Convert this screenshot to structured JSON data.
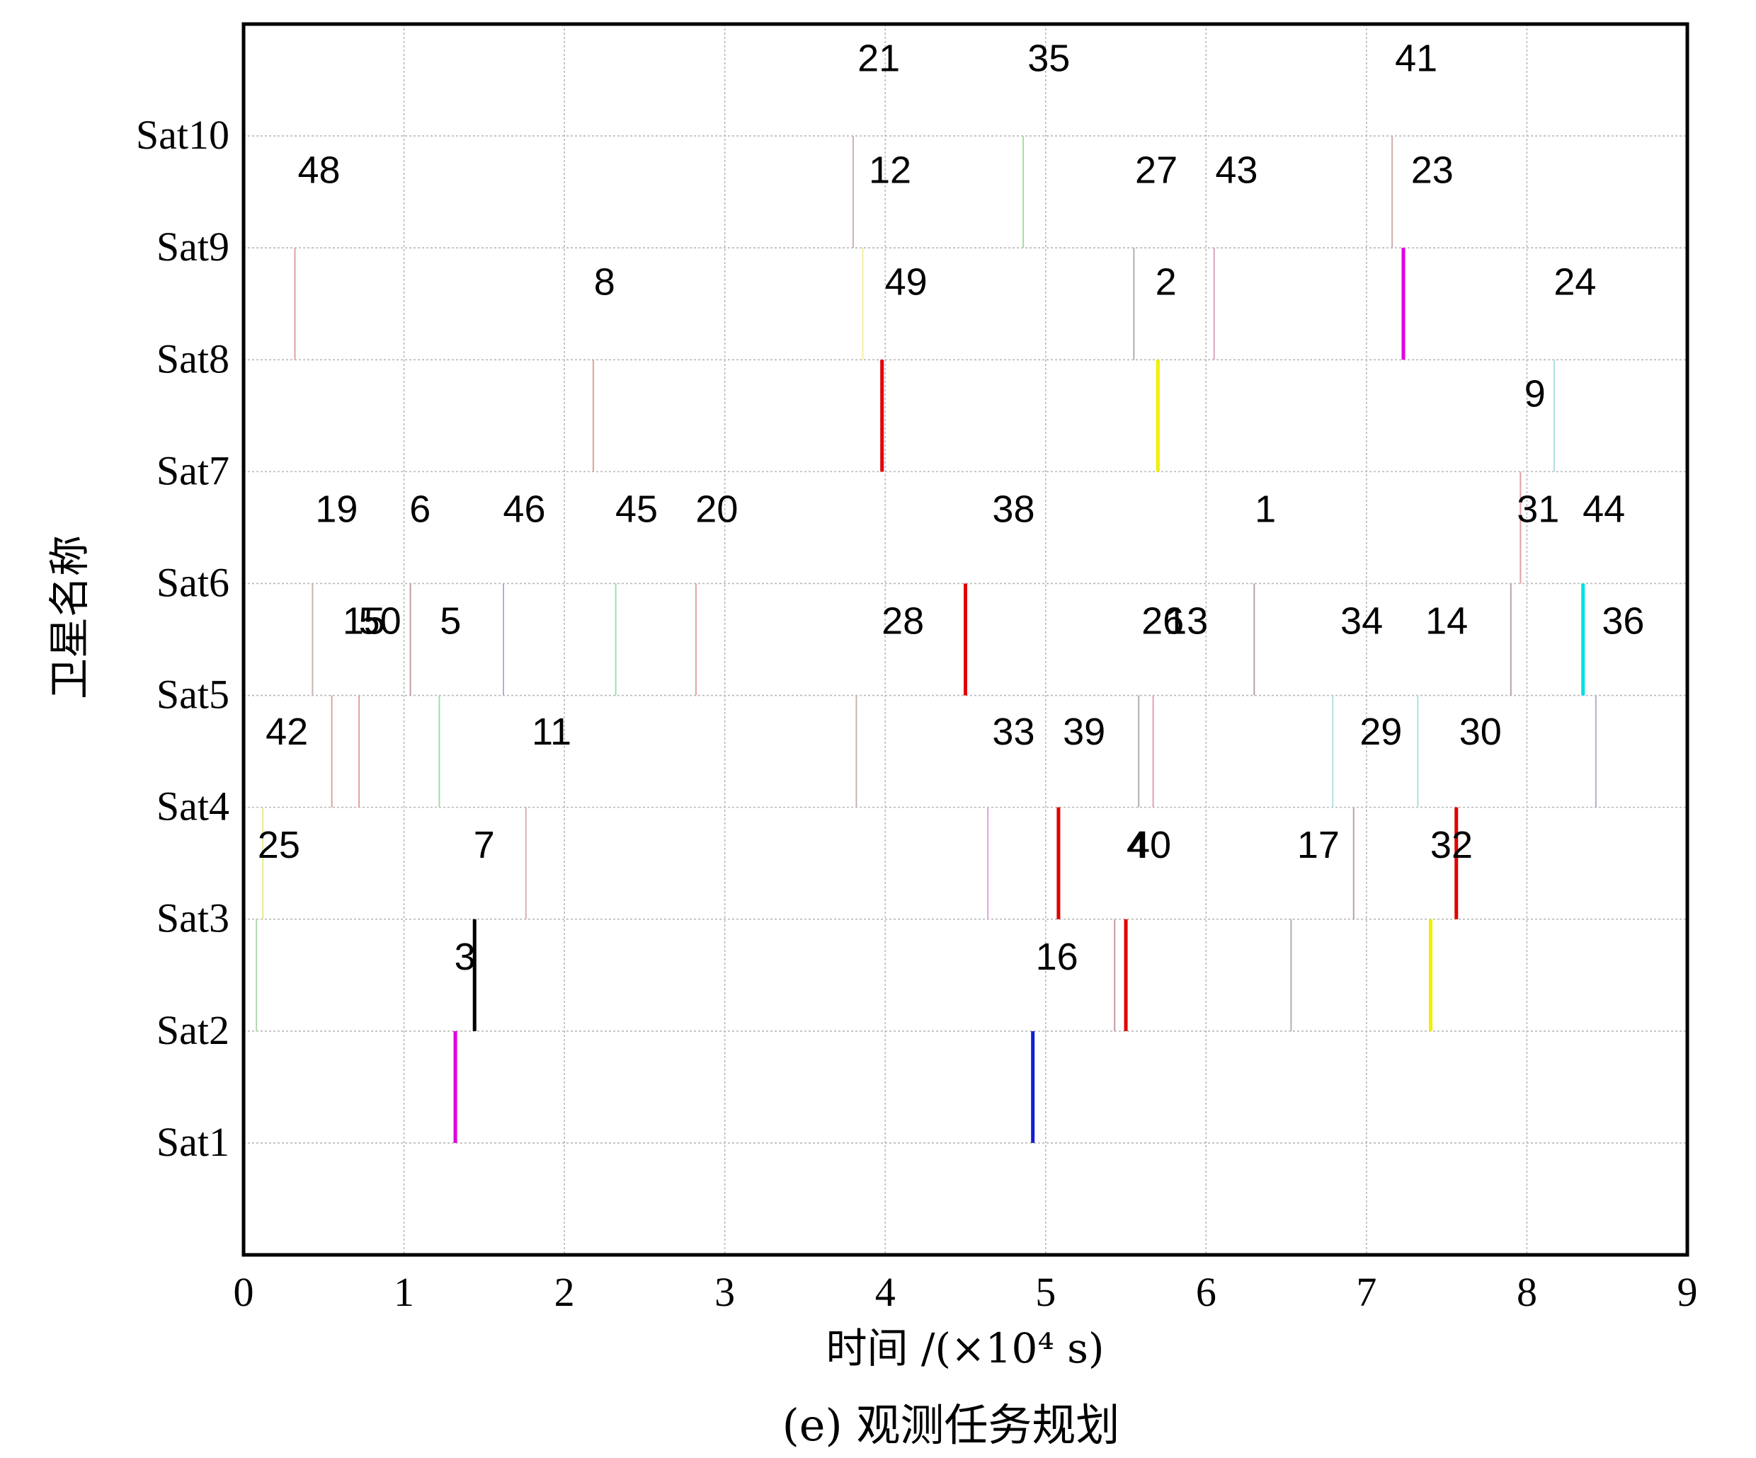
{
  "chart_data": {
    "type": "scatter",
    "caption": "(e) 观测任务规划",
    "xlabel": "时间 /(×10⁴ s)",
    "ylabel": "卫星名称",
    "xlim": [
      0,
      9
    ],
    "xticks": [
      "0",
      "1",
      "2",
      "3",
      "4",
      "5",
      "6",
      "7",
      "8",
      "9"
    ],
    "ylim": [
      0,
      11
    ],
    "yticks": [
      "Sat1",
      "Sat2",
      "Sat3",
      "Sat4",
      "Sat5",
      "Sat6",
      "Sat7",
      "Sat8",
      "Sat9",
      "Sat10"
    ],
    "grid": true,
    "legend": "none",
    "tasks": [
      {
        "id": "3",
        "x": 1.44,
        "sat_from": 2,
        "sat_to": 3,
        "label_x": 1.38,
        "label_y": 2.67,
        "color": "#000000",
        "thick": true
      },
      {
        "id": "16",
        "x": 5.5,
        "sat_from": 2,
        "sat_to": 3,
        "label_x": 5.07,
        "label_y": 2.67,
        "color": "#e00000",
        "thick": true
      },
      {
        "id": "x1",
        "x": 5.43,
        "sat_from": 2,
        "sat_to": 3,
        "color": "#c0a0a0"
      },
      {
        "id": "x2",
        "x": 6.53,
        "sat_from": 2,
        "sat_to": 3,
        "color": "#b0b0b0"
      },
      {
        "id": "x3",
        "x": 7.4,
        "sat_from": 2,
        "sat_to": 3,
        "color": "#f0f000",
        "thick": true
      },
      {
        "id": "x4",
        "x": 0.08,
        "sat_from": 2,
        "sat_to": 3,
        "color": "#b0d8b0"
      },
      {
        "id": "s1a",
        "x": 1.32,
        "sat_from": 1,
        "sat_to": 2,
        "color": "#e000e0",
        "thick": true
      },
      {
        "id": "s1b",
        "x": 4.92,
        "sat_from": 1,
        "sat_to": 2,
        "color": "#1020d0",
        "thick": true
      },
      {
        "id": "25",
        "x": 0.12,
        "sat_from": 3,
        "sat_to": 4,
        "label_x": 0.22,
        "label_y": 3.67,
        "color": "#e8e890"
      },
      {
        "id": "7",
        "x": 1.76,
        "sat_from": 3,
        "sat_to": 4,
        "label_x": 1.5,
        "label_y": 3.67,
        "color": "#d8b0b0"
      },
      {
        "id": "x5",
        "x": 4.64,
        "sat_from": 3,
        "sat_to": 4,
        "color": "#e0a0e0"
      },
      {
        "id": "4",
        "x": 5.08,
        "sat_from": 3,
        "sat_to": 4,
        "label_x": 5.57,
        "label_y": 3.67,
        "color": "#e00000",
        "thick": true
      },
      {
        "id": "40",
        "x": 6.92,
        "sat_from": 3,
        "sat_to": 4,
        "label_x": 5.65,
        "label_y": 3.67,
        "color": "#c0a0a0"
      },
      {
        "id": "17",
        "label_x": 6.7,
        "label_y": 3.67
      },
      {
        "id": "32",
        "x": 7.56,
        "sat_from": 3,
        "sat_to": 4,
        "label_x": 7.53,
        "label_y": 3.67,
        "color": "#e00000",
        "thick": true
      },
      {
        "id": "42",
        "x": 0.55,
        "sat_from": 4,
        "sat_to": 5,
        "label_x": 0.27,
        "label_y": 4.68,
        "color": "#e0a0a0"
      },
      {
        "id": "x6",
        "x": 0.72,
        "sat_from": 4,
        "sat_to": 5,
        "color": "#e0a0a0"
      },
      {
        "id": "x7",
        "x": 1.22,
        "sat_from": 4,
        "sat_to": 5,
        "color": "#a0e0a0"
      },
      {
        "id": "11",
        "label_x": 1.92,
        "label_y": 4.68
      },
      {
        "id": "x8",
        "x": 3.82,
        "sat_from": 4,
        "sat_to": 5,
        "color": "#d0b0b0"
      },
      {
        "id": "33",
        "label_x": 4.8,
        "label_y": 4.68
      },
      {
        "id": "39",
        "x": 5.58,
        "sat_from": 4,
        "sat_to": 5,
        "label_x": 5.24,
        "label_y": 4.68,
        "color": "#b0b0b0"
      },
      {
        "id": "x9",
        "x": 5.67,
        "sat_from": 4,
        "sat_to": 5,
        "color": "#e0a0c0"
      },
      {
        "id": "29",
        "x": 6.79,
        "sat_from": 4,
        "sat_to": 5,
        "label_x": 7.09,
        "label_y": 4.68,
        "color": "#b0e0e0"
      },
      {
        "id": "x10",
        "x": 7.32,
        "sat_from": 4,
        "sat_to": 5,
        "color": "#b0e0e0"
      },
      {
        "id": "30",
        "x": 8.43,
        "sat_from": 4,
        "sat_to": 5,
        "label_x": 7.71,
        "label_y": 4.68,
        "color": "#b0b0d0"
      },
      {
        "id": "15",
        "x": 0.43,
        "sat_from": 5,
        "sat_to": 6,
        "label_x": 0.75,
        "label_y": 5.67,
        "color": "#d0b0b0"
      },
      {
        "id": "50",
        "x": 1.04,
        "sat_from": 5,
        "sat_to": 6,
        "label_x": 0.85,
        "label_y": 5.67,
        "color": "#c0a0a0"
      },
      {
        "id": "5",
        "x": 1.62,
        "sat_from": 5,
        "sat_to": 6,
        "label_x": 1.29,
        "label_y": 5.67,
        "color": "#b0b0d0"
      },
      {
        "id": "x11",
        "x": 2.32,
        "sat_from": 5,
        "sat_to": 6,
        "color": "#a0e0a0"
      },
      {
        "id": "x12",
        "x": 2.82,
        "sat_from": 5,
        "sat_to": 6,
        "color": "#e0a0a0"
      },
      {
        "id": "28",
        "x": 4.5,
        "sat_from": 5,
        "sat_to": 6,
        "label_x": 4.11,
        "label_y": 5.67,
        "color": "#e00000",
        "thick": true
      },
      {
        "id": "26",
        "label_x": 5.73,
        "label_y": 5.67
      },
      {
        "id": "13",
        "x": 6.3,
        "sat_from": 5,
        "sat_to": 6,
        "label_x": 5.88,
        "label_y": 5.67,
        "color": "#c0a0a0"
      },
      {
        "id": "34",
        "label_x": 6.97,
        "label_y": 5.67
      },
      {
        "id": "14",
        "x": 7.9,
        "sat_from": 5,
        "sat_to": 6,
        "label_x": 7.5,
        "label_y": 5.67,
        "color": "#c0a0a0"
      },
      {
        "id": "36",
        "x": 8.35,
        "sat_from": 5,
        "sat_to": 6,
        "label_x": 8.6,
        "label_y": 5.67,
        "color": "#00e0e0",
        "thick": true
      },
      {
        "id": "19",
        "label_x": 0.58,
        "label_y": 6.67
      },
      {
        "id": "6",
        "label_x": 1.1,
        "label_y": 6.67
      },
      {
        "id": "46",
        "label_x": 1.75,
        "label_y": 6.67
      },
      {
        "id": "45",
        "label_x": 2.45,
        "label_y": 6.67
      },
      {
        "id": "20",
        "label_x": 2.95,
        "label_y": 6.67
      },
      {
        "id": "38",
        "label_x": 4.8,
        "label_y": 6.67
      },
      {
        "id": "1",
        "label_x": 6.37,
        "label_y": 6.67
      },
      {
        "id": "31",
        "x": 7.96,
        "sat_from": 6,
        "sat_to": 7,
        "label_x": 8.07,
        "label_y": 6.67,
        "color": "#e0a0a0"
      },
      {
        "id": "44",
        "label_x": 8.48,
        "label_y": 6.67
      },
      {
        "id": "x13",
        "x": 2.18,
        "sat_from": 7,
        "sat_to": 8,
        "color": "#e0a0a0"
      },
      {
        "id": "x14",
        "x": 3.98,
        "sat_from": 7,
        "sat_to": 8,
        "color": "#e00000",
        "thick": true
      },
      {
        "id": "x15",
        "x": 5.7,
        "sat_from": 7,
        "sat_to": 8,
        "color": "#f0f000",
        "thick": true
      },
      {
        "id": "9",
        "x": 8.17,
        "sat_from": 7,
        "sat_to": 8,
        "label_x": 8.05,
        "label_y": 7.7,
        "color": "#b0e0e0"
      },
      {
        "id": "48",
        "x": 0.32,
        "sat_from": 8,
        "sat_to": 9,
        "label_x": 0.47,
        "label_y": 9.7,
        "color": "#e0a0a0"
      },
      {
        "id": "8",
        "label_x": 2.25,
        "label_y": 8.7
      },
      {
        "id": "49",
        "x": 3.86,
        "sat_from": 8,
        "sat_to": 9,
        "label_x": 4.13,
        "label_y": 8.7,
        "color": "#f0f0a0"
      },
      {
        "id": "2",
        "x": 5.55,
        "sat_from": 8,
        "sat_to": 9,
        "label_x": 5.75,
        "label_y": 8.7,
        "color": "#b0b0b0"
      },
      {
        "id": "x16",
        "x": 6.05,
        "sat_from": 8,
        "sat_to": 9,
        "color": "#e0a0c0"
      },
      {
        "id": "x17",
        "x": 7.23,
        "sat_from": 8,
        "sat_to": 9,
        "color": "#e000e0",
        "thick": true
      },
      {
        "id": "24",
        "label_x": 8.3,
        "label_y": 8.7
      },
      {
        "id": "12",
        "x": 3.8,
        "sat_from": 9,
        "sat_to": 10,
        "label_x": 4.03,
        "label_y": 9.7,
        "color": "#d0b0b0"
      },
      {
        "id": "x18",
        "x": 4.86,
        "sat_from": 9,
        "sat_to": 10,
        "color": "#a0e0a0"
      },
      {
        "id": "27",
        "label_x": 5.69,
        "label_y": 9.7
      },
      {
        "id": "43",
        "label_x": 6.19,
        "label_y": 9.7
      },
      {
        "id": "23",
        "x": 7.16,
        "sat_from": 9,
        "sat_to": 10,
        "label_x": 7.41,
        "label_y": 9.7,
        "color": "#d0b0b0"
      },
      {
        "id": "21",
        "label_x": 3.96,
        "label_y": 10.7
      },
      {
        "id": "35",
        "label_x": 5.02,
        "label_y": 10.7
      },
      {
        "id": "41",
        "label_x": 7.31,
        "label_y": 10.7
      }
    ]
  }
}
